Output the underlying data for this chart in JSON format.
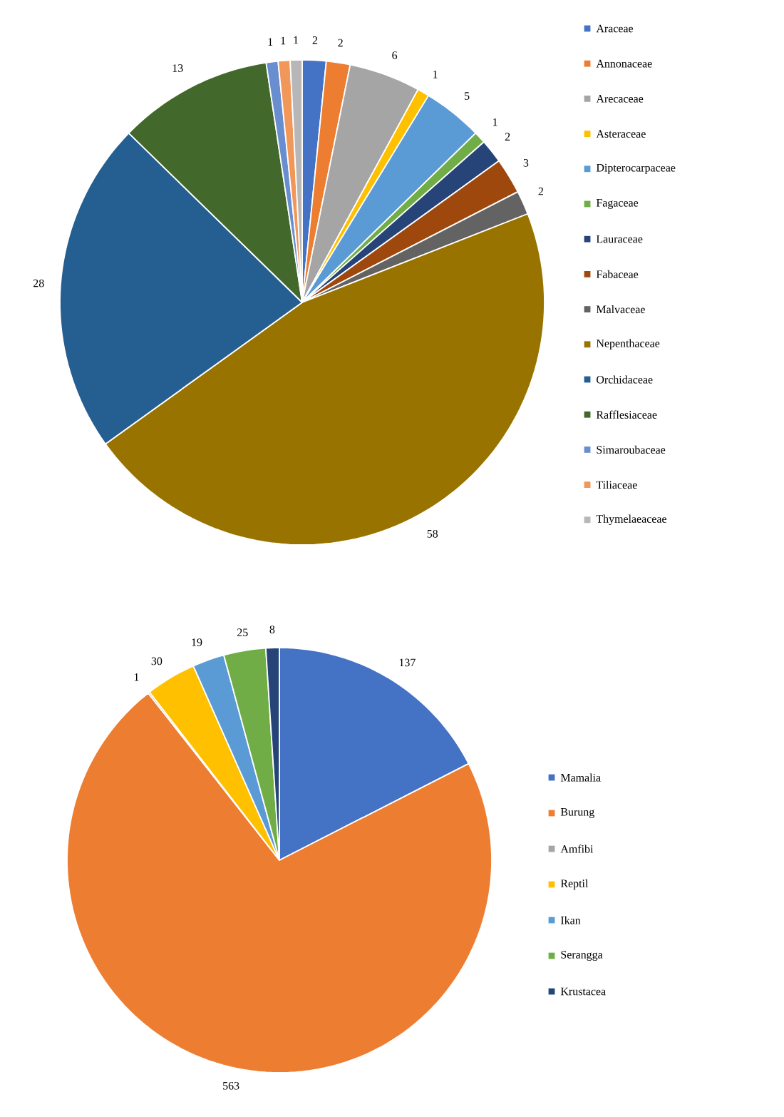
{
  "chart_data": [
    {
      "type": "pie",
      "categories": [
        "Araceae",
        "Annonaceae",
        "Arecaceae",
        "Asteraceae",
        "Dipterocarpaceae",
        "Fagaceae",
        "Lauraceae",
        "Fabaceae",
        "Malvaceae",
        "Nepenthaceae",
        "Orchidaceae",
        "Rafflesiaceae",
        "Simaroubaceae",
        "Tiliaceae",
        "Thymelaeaceae"
      ],
      "values": [
        2,
        2,
        6,
        1,
        5,
        1,
        2,
        3,
        2,
        58,
        28,
        13,
        1,
        1,
        1
      ],
      "colors": [
        "#4472c4",
        "#ed7d31",
        "#a5a5a5",
        "#ffc000",
        "#5b9bd5",
        "#70ad47",
        "#264478",
        "#9e480e",
        "#636363",
        "#997300",
        "#255e91",
        "#43682b",
        "#698ed0",
        "#f1975a",
        "#b7b7b7"
      ],
      "data_labels": true,
      "legend": "right"
    },
    {
      "type": "pie",
      "categories": [
        "Mamalia",
        "Burung",
        "Amfibi",
        "Reptil",
        "Ikan",
        "Serangga",
        "Krustacea"
      ],
      "values": [
        137,
        563,
        1,
        30,
        19,
        25,
        8
      ],
      "colors": [
        "#4472c4",
        "#ed7d31",
        "#a5a5a5",
        "#ffc000",
        "#5b9bd5",
        "#70ad47",
        "#264478"
      ],
      "data_labels": true,
      "legend": "right"
    }
  ]
}
